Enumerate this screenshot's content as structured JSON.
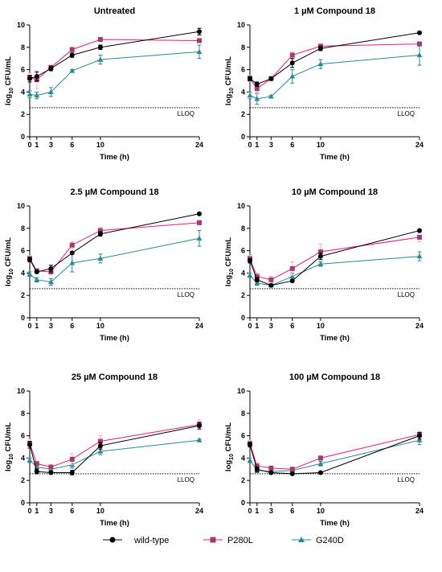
{
  "colors": {
    "wild-type": "#000000",
    "P280L": "#E8197A",
    "G240D": "#2A8A93",
    "p280l_marker": "#A03D70"
  },
  "legend": {
    "placement": "bottom-center",
    "items": [
      "wild-type",
      "P280L",
      "G240D"
    ]
  },
  "chart_data": [
    {
      "type": "line",
      "title": "Untreated",
      "xlabel": "Time (h)",
      "ylabel_main": "log",
      "ylabel_sub": "10",
      "ylabel_rest": " CFU/mL",
      "x": [
        0,
        1,
        3,
        6,
        10,
        24
      ],
      "x_ticks": [
        0,
        1,
        3,
        6,
        10,
        24
      ],
      "y_ticks": [
        0,
        2,
        4,
        6,
        8,
        10
      ],
      "ylim": [
        0,
        10
      ],
      "lloq": {
        "value": 2.6,
        "label": "LLOQ"
      },
      "series": [
        {
          "name": "wild-type",
          "values": [
            5.2,
            5.4,
            6.1,
            7.3,
            8.0,
            9.4
          ],
          "errors": [
            0.3,
            0.4,
            0.2,
            0.2,
            0.2,
            0.3
          ]
        },
        {
          "name": "P280L",
          "values": [
            5.3,
            5.1,
            6.2,
            7.8,
            8.7,
            8.6
          ],
          "errors": [
            0.4,
            0.8,
            0.2,
            0.2,
            0.1,
            0.1
          ]
        },
        {
          "name": "G240D",
          "values": [
            3.8,
            3.7,
            4.0,
            5.9,
            6.9,
            7.6
          ],
          "errors": [
            0.3,
            0.3,
            0.4,
            0.1,
            0.4,
            0.6
          ]
        }
      ]
    },
    {
      "type": "line",
      "title": "1 µM Compound 18",
      "xlabel": "Time (h)",
      "ylabel_main": "log",
      "ylabel_sub": "10",
      "ylabel_rest": " CFU/mL",
      "x": [
        0,
        1,
        3,
        6,
        10,
        24
      ],
      "x_ticks": [
        0,
        1,
        3,
        6,
        10,
        24
      ],
      "y_ticks": [
        0,
        2,
        4,
        6,
        8,
        10
      ],
      "ylim": [
        0,
        10
      ],
      "lloq": {
        "value": 2.6,
        "label": "LLOQ"
      },
      "series": [
        {
          "name": "wild-type",
          "values": [
            5.2,
            4.7,
            5.2,
            6.6,
            7.9,
            9.3
          ],
          "errors": [
            0.2,
            0.2,
            0.1,
            0.4,
            0.2,
            0.1
          ]
        },
        {
          "name": "P280L",
          "values": [
            5.2,
            4.3,
            5.2,
            7.3,
            8.1,
            8.3
          ],
          "errors": [
            0.3,
            0.5,
            0.1,
            0.3,
            0.2,
            0.1
          ]
        },
        {
          "name": "G240D",
          "values": [
            3.7,
            3.4,
            3.6,
            5.4,
            6.5,
            7.3
          ],
          "errors": [
            0.3,
            0.5,
            0.1,
            0.6,
            0.4,
            0.9
          ]
        }
      ]
    },
    {
      "type": "line",
      "title": "2.5 µM Compound 18",
      "xlabel": "Time (h)",
      "ylabel_main": "log",
      "ylabel_sub": "10",
      "ylabel_rest": " CFU/mL",
      "x": [
        0,
        1,
        3,
        6,
        10,
        24
      ],
      "x_ticks": [
        0,
        1,
        3,
        6,
        10,
        24
      ],
      "y_ticks": [
        0,
        2,
        4,
        6,
        8,
        10
      ],
      "ylim": [
        0,
        10
      ],
      "lloq": {
        "value": 2.6,
        "label": "LLOQ"
      },
      "series": [
        {
          "name": "wild-type",
          "values": [
            5.2,
            4.1,
            4.4,
            5.8,
            7.5,
            9.3
          ],
          "errors": [
            0.2,
            0.1,
            0.3,
            0.1,
            0.2,
            0.1
          ]
        },
        {
          "name": "P280L",
          "values": [
            5.3,
            4.2,
            4.1,
            6.5,
            7.8,
            8.5
          ],
          "errors": [
            0.3,
            0.2,
            0.2,
            0.3,
            0.3,
            0.2
          ]
        },
        {
          "name": "G240D",
          "values": [
            3.9,
            3.4,
            3.2,
            4.9,
            5.3,
            7.1
          ],
          "errors": [
            0.2,
            0.2,
            0.3,
            0.8,
            0.4,
            0.7
          ]
        }
      ]
    },
    {
      "type": "line",
      "title": "10 µM Compound 18",
      "xlabel": "Time (h)",
      "ylabel_main": "log",
      "ylabel_sub": "10",
      "ylabel_rest": " CFU/mL",
      "x": [
        0,
        1,
        3,
        6,
        10,
        24
      ],
      "x_ticks": [
        0,
        1,
        3,
        6,
        10,
        24
      ],
      "y_ticks": [
        0,
        2,
        4,
        6,
        8,
        10
      ],
      "ylim": [
        0,
        10
      ],
      "lloq": {
        "value": 2.6,
        "label": "LLOQ"
      },
      "series": [
        {
          "name": "wild-type",
          "values": [
            5.1,
            3.4,
            2.9,
            3.3,
            5.5,
            7.8
          ],
          "errors": [
            0.2,
            0.2,
            0.1,
            0.1,
            0.3,
            0.1
          ]
        },
        {
          "name": "P280L",
          "values": [
            5.3,
            3.7,
            3.4,
            4.4,
            5.9,
            7.2
          ],
          "errors": [
            0.3,
            0.3,
            0.3,
            0.6,
            0.7,
            0.4
          ]
        },
        {
          "name": "G240D",
          "values": [
            3.8,
            3.1,
            2.9,
            3.7,
            4.8,
            5.5
          ],
          "errors": [
            0.2,
            0.2,
            0.1,
            0.3,
            0.2,
            0.4
          ]
        }
      ]
    },
    {
      "type": "line",
      "title": "25 µM Compound 18",
      "xlabel": "Time (h)",
      "ylabel_main": "log",
      "ylabel_sub": "10",
      "ylabel_rest": " CFU/mL",
      "x": [
        0,
        1,
        3,
        6,
        10,
        24
      ],
      "x_ticks": [
        0,
        1,
        3,
        6,
        10,
        24
      ],
      "y_ticks": [
        0,
        2,
        4,
        6,
        8,
        10
      ],
      "ylim": [
        0,
        10
      ],
      "lloq": {
        "value": 2.6,
        "label": "LLOQ"
      },
      "series": [
        {
          "name": "wild-type",
          "values": [
            5.2,
            2.8,
            2.7,
            2.7,
            5.1,
            6.9
          ],
          "errors": [
            0.3,
            0.2,
            0.1,
            0.2,
            0.3,
            0.3
          ]
        },
        {
          "name": "P280L",
          "values": [
            5.3,
            3.5,
            3.2,
            3.9,
            5.5,
            7.0
          ],
          "errors": [
            0.4,
            0.2,
            0.2,
            0.5,
            0.5,
            0.4
          ]
        },
        {
          "name": "G240D",
          "values": [
            3.8,
            3.2,
            3.0,
            3.4,
            4.6,
            5.6
          ],
          "errors": [
            0.2,
            0.2,
            0.2,
            0.3,
            0.3,
            0.1
          ]
        }
      ]
    },
    {
      "type": "line",
      "title": "100 µM Compound 18",
      "xlabel": "Time (h)",
      "ylabel_main": "log",
      "ylabel_sub": "10",
      "ylabel_rest": " CFU/mL",
      "x": [
        0,
        1,
        3,
        6,
        10,
        24
      ],
      "x_ticks": [
        0,
        1,
        3,
        6,
        10,
        24
      ],
      "y_ticks": [
        0,
        2,
        4,
        6,
        8,
        10
      ],
      "ylim": [
        0,
        10
      ],
      "lloq": {
        "value": 2.6,
        "label": "LLOQ"
      },
      "series": [
        {
          "name": "wild-type",
          "values": [
            5.2,
            3.0,
            2.7,
            2.6,
            2.7,
            6.0
          ],
          "errors": [
            0.2,
            0.2,
            0.1,
            0.1,
            0.1,
            0.3
          ]
        },
        {
          "name": "P280L",
          "values": [
            5.3,
            3.3,
            3.1,
            3.0,
            4.0,
            6.1
          ],
          "errors": [
            0.3,
            0.3,
            0.2,
            0.2,
            0.2,
            0.3
          ]
        },
        {
          "name": "G240D",
          "values": [
            3.8,
            2.9,
            2.8,
            2.9,
            3.5,
            5.6
          ],
          "errors": [
            0.2,
            0.2,
            0.1,
            0.2,
            0.2,
            0.4
          ]
        }
      ]
    }
  ]
}
